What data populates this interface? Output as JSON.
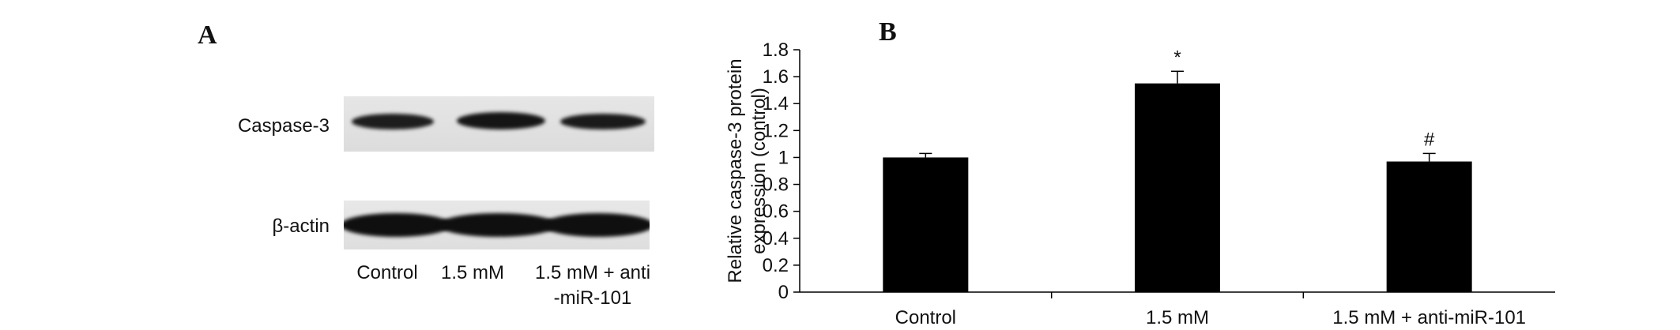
{
  "figure": {
    "panel_a_letter": "A",
    "panel_b_letter": "B"
  },
  "blot": {
    "rows": [
      {
        "label": "Caspase-3",
        "band_intensity": [
          0.75,
          0.9,
          0.8
        ]
      },
      {
        "label": "β-actin",
        "band_intensity": [
          1.0,
          1.0,
          1.0
        ]
      }
    ],
    "lanes": [
      {
        "line1": "Control",
        "line2": ""
      },
      {
        "line1": "1.5 mM",
        "line2": ""
      },
      {
        "line1": "1.5 mM + anti",
        "line2": "-miR-101"
      }
    ]
  },
  "chart_data": {
    "type": "bar",
    "categories": [
      "Control",
      "1.5 mM",
      "1.5 mM + anti-miR-101"
    ],
    "values": [
      1.0,
      1.55,
      0.97
    ],
    "errors": [
      0.03,
      0.09,
      0.06
    ],
    "annotations": [
      "",
      "*",
      "#"
    ],
    "ylabel_line1": "Relative caspase-3 protein",
    "ylabel_line2": "expression (control)",
    "ylim": [
      0,
      1.8
    ],
    "yticks": [
      0,
      0.2,
      0.4,
      0.6,
      0.8,
      1,
      1.2,
      1.4,
      1.6,
      1.8
    ],
    "ytick_labels": [
      "0",
      "0.2",
      "0.4",
      "0.6",
      "0.8",
      "1",
      "1.2",
      "1.4",
      "1.6",
      "1.8"
    ],
    "bar_color": "#000000",
    "grid": false
  }
}
